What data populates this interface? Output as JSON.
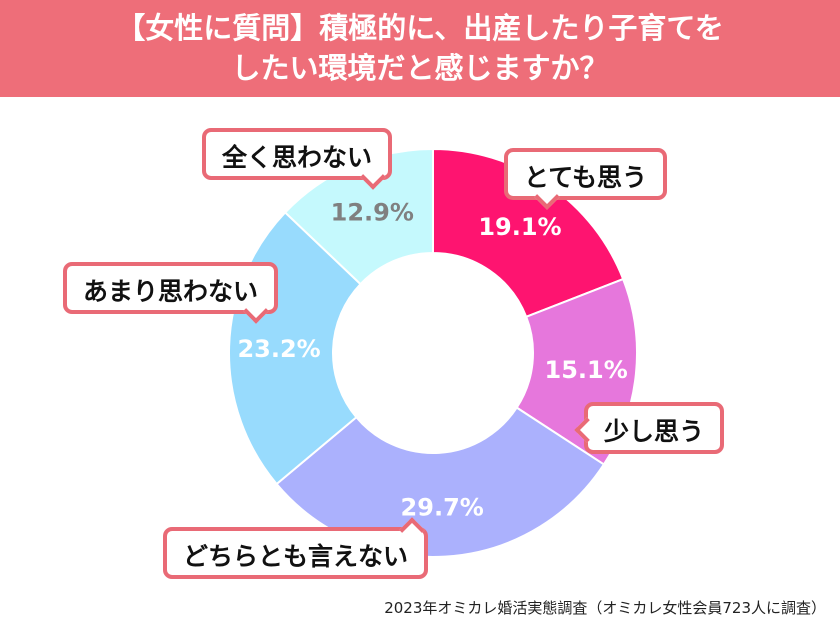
{
  "title": {
    "line1": "【女性に質問】積極的に、出産したり子育てを",
    "line2": "したい環境だと感じますか？"
  },
  "footer": "2023年オミカレ婚活実態調査（オミカレ女性会員723人に調査）",
  "chart_data": {
    "type": "pie",
    "donut": true,
    "categories": [
      "とても思う",
      "少し思う",
      "どちらとも言えない",
      "あまり思わない",
      "全く思わない"
    ],
    "values": [
      19.1,
      15.1,
      29.7,
      23.2,
      12.9
    ],
    "data_labels": [
      "19.1%",
      "15.1%",
      "29.7%",
      "23.2%",
      "12.9%"
    ],
    "colors": [
      "#fe1470",
      "#e677dc",
      "#abb1fd",
      "#98dbfd",
      "#c5f9fd"
    ],
    "label_colors": [
      "#ffffff",
      "#ffffff",
      "#ffffff",
      "#ffffff",
      "#808080"
    ],
    "accent": "#ee6e79"
  }
}
